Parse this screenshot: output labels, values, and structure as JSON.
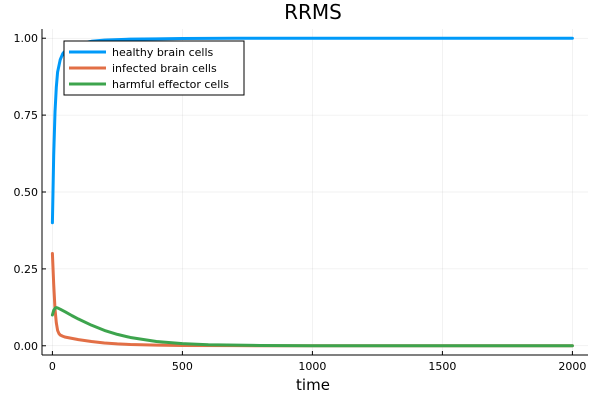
{
  "chart_data": {
    "type": "line",
    "title": "RRMS",
    "xlabel": "time",
    "ylabel": "",
    "xlim": [
      -40,
      2060
    ],
    "ylim": [
      -0.03,
      1.03
    ],
    "xticks": [
      0,
      500,
      1000,
      1500,
      2000
    ],
    "xtick_labels": [
      "0",
      "500",
      "1000",
      "1500",
      "2000"
    ],
    "yticks": [
      0.0,
      0.25,
      0.5,
      0.75,
      1.0
    ],
    "ytick_labels": [
      "0.00",
      "0.25",
      "0.50",
      "0.75",
      "1.00"
    ],
    "grid": true,
    "legend_position": "top-left",
    "series": [
      {
        "name": "healthy brain cells",
        "color": "#009af9",
        "x": [
          0,
          5,
          10,
          15,
          20,
          30,
          40,
          50,
          75,
          100,
          150,
          200,
          300,
          400,
          500,
          600,
          700,
          800,
          1000,
          1200,
          1500,
          2000
        ],
        "y": [
          0.4,
          0.62,
          0.76,
          0.84,
          0.89,
          0.93,
          0.95,
          0.96,
          0.975,
          0.983,
          0.99,
          0.994,
          0.997,
          0.998,
          0.999,
          0.9995,
          1.0,
          1.0,
          1.0,
          1.0,
          1.0,
          1.0
        ]
      },
      {
        "name": "infected brain cells",
        "color": "#e26f46",
        "x": [
          0,
          5,
          10,
          15,
          20,
          25,
          30,
          40,
          50,
          75,
          100,
          150,
          200,
          250,
          300,
          400,
          500,
          700,
          1000,
          1500,
          2000
        ],
        "y": [
          0.3,
          0.2,
          0.12,
          0.075,
          0.05,
          0.04,
          0.035,
          0.031,
          0.028,
          0.024,
          0.02,
          0.014,
          0.009,
          0.006,
          0.004,
          0.002,
          0.001,
          0.0003,
          0.0,
          0.0,
          0.0
        ]
      },
      {
        "name": "harmful effector cells",
        "color": "#3da44d",
        "x": [
          0,
          5,
          10,
          15,
          20,
          30,
          50,
          75,
          100,
          150,
          200,
          250,
          300,
          400,
          500,
          600,
          800,
          1000,
          1500,
          2000
        ],
        "y": [
          0.1,
          0.115,
          0.122,
          0.124,
          0.123,
          0.119,
          0.11,
          0.098,
          0.087,
          0.067,
          0.05,
          0.037,
          0.027,
          0.014,
          0.007,
          0.0035,
          0.001,
          0.0002,
          0.0,
          0.0
        ]
      }
    ]
  }
}
